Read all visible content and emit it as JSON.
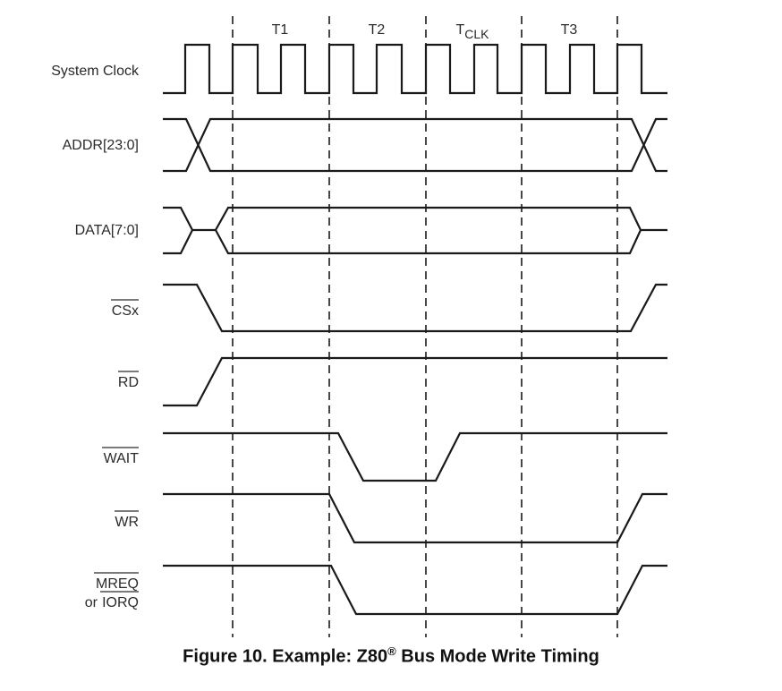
{
  "phases": [
    {
      "id": "t1",
      "label": "T1",
      "sub": ""
    },
    {
      "id": "t2",
      "label": "T2",
      "sub": ""
    },
    {
      "id": "tclk",
      "label": "T",
      "sub": "CLK"
    },
    {
      "id": "t3",
      "label": "T3",
      "sub": ""
    }
  ],
  "signals": {
    "clock": {
      "label": "System Clock"
    },
    "addr": {
      "label": "ADDR[23:0]"
    },
    "data": {
      "label": "DATA[7:0]"
    },
    "cs": {
      "label": "CSx",
      "active_low": true
    },
    "rd": {
      "label": "RD",
      "active_low": true
    },
    "wait": {
      "label": "WAIT",
      "active_low": true
    },
    "wr": {
      "label": "WR",
      "active_low": true
    },
    "mreq": {
      "label": "MREQ",
      "active_low": true
    },
    "mreq_or": {
      "label": "or"
    },
    "iorq": {
      "label": "IORQ",
      "active_low": true
    }
  },
  "caption": {
    "prefix": "Figure 10. Example: Z80",
    "registered": "®",
    "suffix": " Bus Mode Write Timing"
  }
}
